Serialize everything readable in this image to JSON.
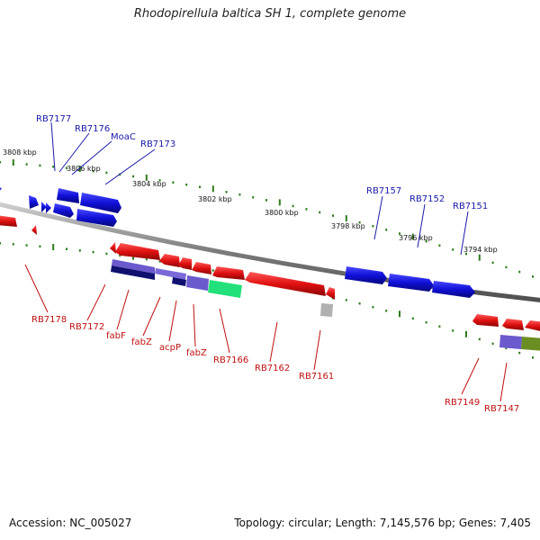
{
  "title": "Rhodopirellula baltica SH 1, complete genome",
  "footer": {
    "accession": "Accession: NC_005027",
    "stats": "Topology: circular; Length: 7,145,576 bp; Genes: 7,405"
  },
  "ticks": [
    "3808 kbp",
    "3806 kbp",
    "3804 kbp",
    "3802 kbp",
    "3800 kbp",
    "3798 kbp",
    "3796 kbp",
    "3794 kbp"
  ],
  "forward_labels": [
    "RB7177",
    "RB7176",
    "MoaC",
    "RB7173",
    "RB7157",
    "RB7152",
    "RB7151"
  ],
  "reverse_labels": [
    "RB7178",
    "RB7172",
    "fabF",
    "fabZ",
    "acpP",
    "fabZ",
    "RB7166",
    "RB7162",
    "RB7161",
    "RB7149",
    "RB7147"
  ],
  "colors": {
    "forward_gene": "#1010d8",
    "reverse_gene": "#e01010",
    "forward_label": "#1a1aa8",
    "reverse_label": "#c01010",
    "backbone": "#8a8a8a",
    "tick_mark": "#2e7d1e",
    "cog_purple": "#6a5acd",
    "cog_navy": "#10106e",
    "cog_green": "#22e07a",
    "cog_olive": "#6b8e23",
    "cog_gray": "#b0b0b0"
  }
}
